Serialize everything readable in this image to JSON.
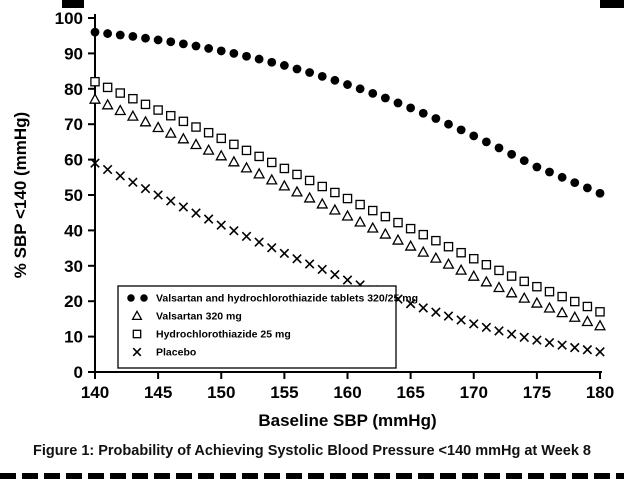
{
  "figure": {
    "caption": "Figure 1: Probability of Achieving Systolic Blood Pressure <140 mmHg at Week 8"
  },
  "chart_data": {
    "type": "scatter",
    "title": "",
    "xlabel": "Baseline SBP (mmHg)",
    "ylabel": "% SBP <140 (mmHg)",
    "xlim": [
      140,
      180
    ],
    "ylim": [
      0,
      100
    ],
    "xticks": [
      140,
      145,
      150,
      155,
      160,
      165,
      170,
      175,
      180
    ],
    "yticks": [
      0,
      10,
      20,
      30,
      40,
      50,
      60,
      70,
      80,
      90,
      100
    ],
    "grid": false,
    "legend_position": "lower-left",
    "x": [
      140,
      141,
      142,
      143,
      144,
      145,
      146,
      147,
      148,
      149,
      150,
      151,
      152,
      153,
      154,
      155,
      156,
      157,
      158,
      159,
      160,
      161,
      162,
      163,
      164,
      165,
      166,
      167,
      168,
      169,
      170,
      171,
      172,
      173,
      174,
      175,
      176,
      177,
      178,
      179,
      180
    ],
    "series": [
      {
        "name": "Valsartan and hydrochlorothiazide tablets 320/25 mg",
        "marker": "filled-circle",
        "values": [
          96,
          95.6,
          95.2,
          94.8,
          94.3,
          93.8,
          93.3,
          92.7,
          92.1,
          91.4,
          90.7,
          90,
          89.2,
          88.4,
          87.5,
          86.6,
          85.6,
          84.6,
          83.5,
          82.4,
          81.2,
          80,
          78.7,
          77.4,
          76,
          74.6,
          73.1,
          71.6,
          70,
          68.4,
          66.7,
          65,
          63.3,
          61.5,
          59.7,
          57.9,
          56.5,
          55,
          53.5,
          52,
          50.5
        ]
      },
      {
        "name": "Valsartan 320 mg",
        "marker": "open-triangle",
        "values": [
          77,
          75.4,
          73.8,
          72.2,
          70.6,
          69,
          67.4,
          65.8,
          64.2,
          62.6,
          61,
          59.3,
          57.6,
          55.9,
          54.2,
          52.5,
          50.8,
          49.1,
          47.4,
          45.7,
          44,
          42.3,
          40.6,
          38.9,
          37.2,
          35.5,
          33.8,
          32.1,
          30.4,
          28.7,
          27,
          25.4,
          23.8,
          22.3,
          20.8,
          19.4,
          18,
          16.7,
          15.4,
          14.2,
          13
        ]
      },
      {
        "name": "Hydrochlorothiazide 25 mg",
        "marker": "open-square",
        "values": [
          82,
          80.4,
          78.8,
          77.2,
          75.6,
          74,
          72.4,
          70.8,
          69.2,
          67.6,
          66,
          64.3,
          62.6,
          60.9,
          59.2,
          57.5,
          55.8,
          54.1,
          52.4,
          50.7,
          49,
          47.3,
          45.6,
          43.9,
          42.2,
          40.5,
          38.8,
          37.1,
          35.4,
          33.7,
          32,
          30.3,
          28.7,
          27.1,
          25.6,
          24.1,
          22.7,
          21.3,
          19.9,
          18.5,
          17
        ]
      },
      {
        "name": "Placebo",
        "marker": "x-cross",
        "values": [
          59,
          57.2,
          55.4,
          53.6,
          51.8,
          50,
          48.3,
          46.6,
          44.9,
          43.2,
          41.5,
          39.9,
          38.3,
          36.7,
          35.1,
          33.5,
          32,
          30.5,
          29,
          27.5,
          26,
          24.6,
          23.2,
          21.9,
          20.6,
          19.3,
          18.1,
          16.9,
          15.8,
          14.7,
          13.6,
          12.6,
          11.6,
          10.7,
          9.8,
          9,
          8.3,
          7.6,
          6.9,
          6.3,
          5.7
        ]
      }
    ],
    "colors": {
      "ink": "#000000",
      "background": "#ffffff"
    }
  }
}
